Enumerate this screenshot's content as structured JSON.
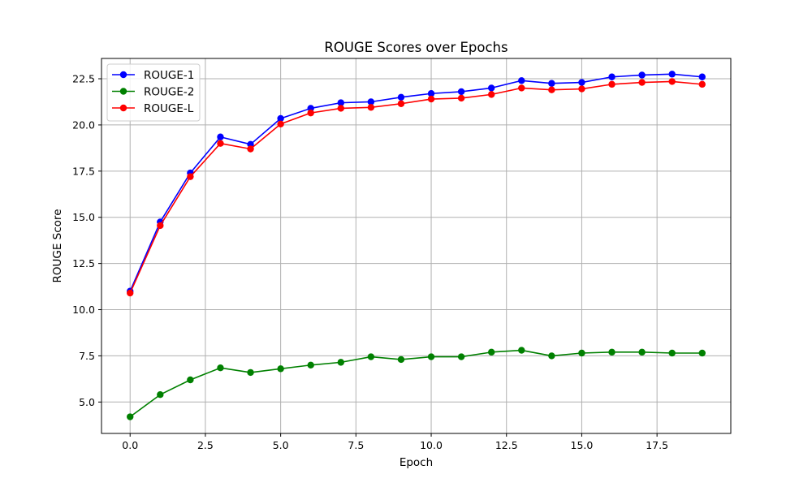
{
  "chart_data": {
    "type": "line",
    "title": "ROUGE Scores over Epochs",
    "xlabel": "Epoch",
    "ylabel": "ROUGE Score",
    "x": [
      0,
      1,
      2,
      3,
      4,
      5,
      6,
      7,
      8,
      9,
      10,
      11,
      12,
      13,
      14,
      15,
      16,
      17,
      18,
      19
    ],
    "xlim": [
      -0.95,
      19.95
    ],
    "ylim": [
      3.3,
      23.6
    ],
    "xticks": [
      0,
      2.5,
      5,
      7.5,
      10,
      12.5,
      15,
      17.5
    ],
    "xtick_labels": [
      "0.0",
      "2.5",
      "5.0",
      "7.5",
      "10.0",
      "12.5",
      "15.0",
      "17.5"
    ],
    "yticks": [
      5,
      7.5,
      10,
      12.5,
      15,
      17.5,
      20,
      22.5
    ],
    "ytick_labels": [
      "5.0",
      "7.5",
      "10.0",
      "12.5",
      "15.0",
      "17.5",
      "20.0",
      "22.5"
    ],
    "grid": true,
    "legend_position": "top-left",
    "marker": "circle",
    "series": [
      {
        "name": "ROUGE-1",
        "color": "#0000ff",
        "values": [
          11.0,
          14.75,
          17.4,
          19.35,
          18.95,
          20.35,
          20.9,
          21.2,
          21.25,
          21.5,
          21.7,
          21.8,
          22.0,
          22.4,
          22.25,
          22.3,
          22.6,
          22.7,
          22.75,
          22.6
        ]
      },
      {
        "name": "ROUGE-2",
        "color": "#008000",
        "values": [
          4.2,
          5.4,
          6.2,
          6.85,
          6.6,
          6.8,
          7.0,
          7.15,
          7.45,
          7.3,
          7.45,
          7.45,
          7.7,
          7.8,
          7.5,
          7.65,
          7.7,
          7.7,
          7.65,
          7.65
        ]
      },
      {
        "name": "ROUGE-L",
        "color": "#ff0000",
        "values": [
          10.9,
          14.55,
          17.2,
          19.0,
          18.7,
          20.05,
          20.65,
          20.9,
          20.95,
          21.15,
          21.4,
          21.45,
          21.65,
          22.0,
          21.9,
          21.95,
          22.2,
          22.3,
          22.35,
          22.2
        ]
      }
    ]
  }
}
